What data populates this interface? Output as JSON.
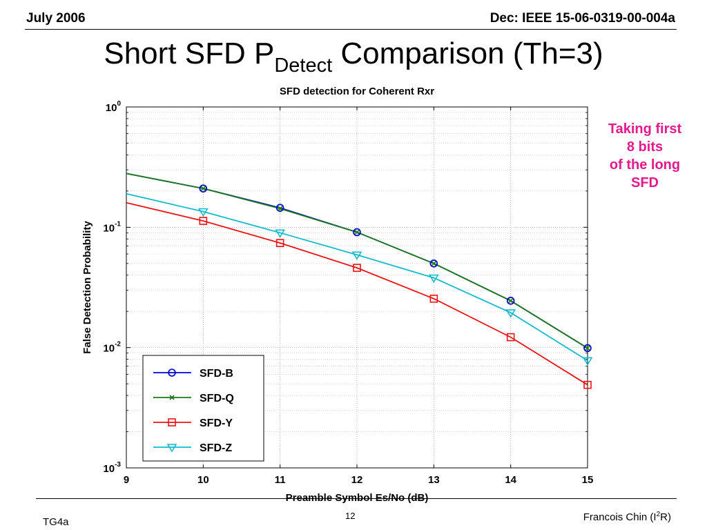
{
  "header": {
    "left": "July 2006",
    "right": "Dec: IEEE 15-06-0319-00-004a"
  },
  "slide": {
    "title_main": "Short SFD P",
    "title_sub": "Detect",
    "title_tail": " Comparison (Th=3)",
    "note_lines": [
      "Taking first",
      "8 bits",
      "of the long",
      "SFD"
    ]
  },
  "footer": {
    "left": "TG4a",
    "page": "12",
    "author_main": "Francois Chin (I",
    "author_sup": "2",
    "author_tail": "R)"
  },
  "colors": {
    "sfd_b": "#0000dd",
    "sfd_q": "#1a7a1a",
    "sfd_y": "#ee1111",
    "sfd_z": "#11bbcc",
    "note": "#e6198c"
  },
  "chart_data": {
    "type": "line",
    "title": "SFD detection for Coherent Rxr",
    "xlabel": "Preamble Symbol Es/No (dB)",
    "ylabel": "False Detection Probability",
    "y_scale": "log",
    "xlim": [
      9,
      15
    ],
    "ylim": [
      0.001,
      1
    ],
    "x_ticks": [
      "9",
      "10",
      "11",
      "12",
      "13",
      "14",
      "15"
    ],
    "y_ticks": [
      {
        "value": 1,
        "base": "10",
        "exp": "0"
      },
      {
        "value": 0.1,
        "base": "10",
        "exp": "-1"
      },
      {
        "value": 0.01,
        "base": "10",
        "exp": "-2"
      },
      {
        "value": 0.001,
        "base": "10",
        "exp": "-3"
      }
    ],
    "grid": true,
    "legend_position": "bottom-left",
    "x": [
      9,
      10,
      11,
      12,
      13,
      14,
      15
    ],
    "series": [
      {
        "name": "SFD-B",
        "color": "#0000dd",
        "marker": "circle",
        "marks_from": 1,
        "values": [
          0.28,
          0.21,
          0.145,
          0.091,
          0.05,
          0.0245,
          0.0099
        ]
      },
      {
        "name": "SFD-Q",
        "color": "#1a7a1a",
        "marker": "x",
        "marks_from": 1,
        "values": [
          0.28,
          0.21,
          0.143,
          0.091,
          0.05,
          0.0245,
          0.0099
        ]
      },
      {
        "name": "SFD-Y",
        "color": "#ee1111",
        "marker": "square",
        "marks_from": 1,
        "values": [
          0.16,
          0.113,
          0.074,
          0.046,
          0.0255,
          0.0122,
          0.0049
        ]
      },
      {
        "name": "SFD-Z",
        "color": "#11bbcc",
        "marker": "triangle-down",
        "marks_from": 1,
        "values": [
          0.19,
          0.135,
          0.09,
          0.059,
          0.038,
          0.0195,
          0.0078
        ]
      }
    ]
  }
}
